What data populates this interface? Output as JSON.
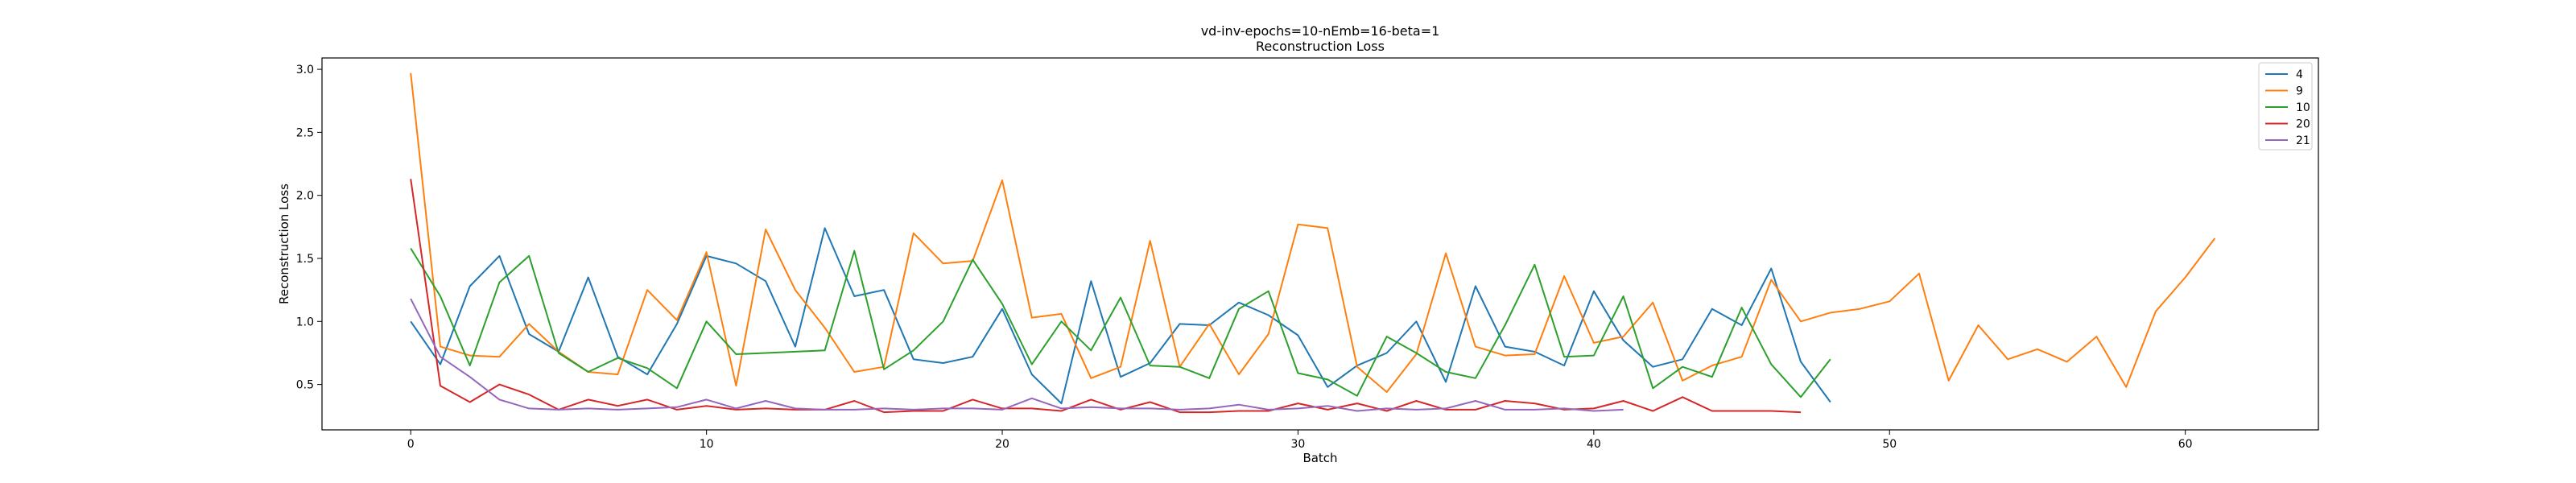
{
  "chart_data": {
    "type": "line",
    "title": "vd-inv-epochs=10-nEmb=16-beta=1",
    "subtitle": "Reconstruction Loss",
    "xlabel": "Batch",
    "ylabel": "Reconstruction Loss",
    "xlim": [
      -3,
      64.5
    ],
    "ylim": [
      0.14,
      3.09
    ],
    "xticks": [
      "0",
      "10",
      "20",
      "30",
      "40",
      "50",
      "60"
    ],
    "yticks": [
      "0.5",
      "1.0",
      "1.5",
      "2.0",
      "2.5",
      "3.0"
    ],
    "grid": false,
    "legend_position": "top-right",
    "series": [
      {
        "name": "4",
        "color": "#1f77b4",
        "values": [
          1.0,
          0.66,
          1.28,
          1.52,
          0.9,
          0.76,
          1.35,
          0.72,
          0.58,
          0.98,
          1.52,
          1.46,
          1.32,
          0.8,
          1.74,
          1.2,
          1.25,
          0.7,
          0.67,
          0.72,
          1.1,
          0.58,
          0.35,
          1.32,
          0.56,
          0.67,
          0.98,
          0.97,
          1.15,
          1.05,
          0.89,
          0.48,
          0.65,
          0.75,
          1.0,
          0.52,
          1.28,
          0.8,
          0.76,
          0.65,
          1.24,
          0.85,
          0.64,
          0.7,
          1.1,
          0.97,
          1.42,
          0.68,
          0.36
        ]
      },
      {
        "name": "9",
        "color": "#ff7f0e",
        "values": [
          2.97,
          0.8,
          0.73,
          0.72,
          0.98,
          0.76,
          0.6,
          0.58,
          1.25,
          1.01,
          1.55,
          0.49,
          1.73,
          1.25,
          0.95,
          0.6,
          0.64,
          1.7,
          1.46,
          1.48,
          2.12,
          1.03,
          1.06,
          0.55,
          0.64,
          1.64,
          0.64,
          0.98,
          0.58,
          0.9,
          1.77,
          1.74,
          0.64,
          0.44,
          0.74,
          1.54,
          0.8,
          0.73,
          0.74,
          1.36,
          0.83,
          0.88,
          1.15,
          0.53,
          0.65,
          0.72,
          1.33,
          1.0,
          1.07,
          1.1,
          1.16,
          1.38,
          0.53,
          0.97,
          0.7,
          0.78,
          0.68,
          0.88,
          0.48,
          1.08,
          1.35,
          1.66
        ]
      },
      {
        "name": "10",
        "color": "#2ca02c",
        "values": [
          1.58,
          1.2,
          0.65,
          1.31,
          1.52,
          0.75,
          0.6,
          0.71,
          0.63,
          0.47,
          1.0,
          0.74,
          0.75,
          0.76,
          0.77,
          1.56,
          0.62,
          0.77,
          1.0,
          1.49,
          1.14,
          0.66,
          1.0,
          0.77,
          1.19,
          0.65,
          0.64,
          0.55,
          1.1,
          1.24,
          0.59,
          0.54,
          0.41,
          0.88,
          0.75,
          0.6,
          0.55,
          0.97,
          1.45,
          0.72,
          0.73,
          1.2,
          0.47,
          0.64,
          0.56,
          1.11,
          0.66,
          0.4,
          0.7
        ]
      },
      {
        "name": "20",
        "color": "#d62728",
        "values": [
          2.13,
          0.49,
          0.36,
          0.5,
          0.42,
          0.3,
          0.38,
          0.33,
          0.38,
          0.3,
          0.33,
          0.3,
          0.31,
          0.3,
          0.3,
          0.37,
          0.28,
          0.29,
          0.29,
          0.38,
          0.31,
          0.31,
          0.29,
          0.38,
          0.3,
          0.36,
          0.28,
          0.28,
          0.29,
          0.29,
          0.35,
          0.3,
          0.35,
          0.29,
          0.37,
          0.3,
          0.3,
          0.37,
          0.35,
          0.3,
          0.31,
          0.37,
          0.29,
          0.4,
          0.29,
          0.29,
          0.29,
          0.28
        ]
      },
      {
        "name": "21",
        "color": "#9467bd",
        "values": [
          1.18,
          0.72,
          0.56,
          0.38,
          0.31,
          0.3,
          0.31,
          0.3,
          0.31,
          0.32,
          0.38,
          0.31,
          0.37,
          0.31,
          0.3,
          0.3,
          0.31,
          0.3,
          0.31,
          0.31,
          0.3,
          0.39,
          0.31,
          0.32,
          0.31,
          0.31,
          0.3,
          0.31,
          0.34,
          0.3,
          0.31,
          0.33,
          0.29,
          0.31,
          0.3,
          0.31,
          0.37,
          0.3,
          0.3,
          0.31,
          0.29,
          0.3
        ]
      }
    ]
  }
}
